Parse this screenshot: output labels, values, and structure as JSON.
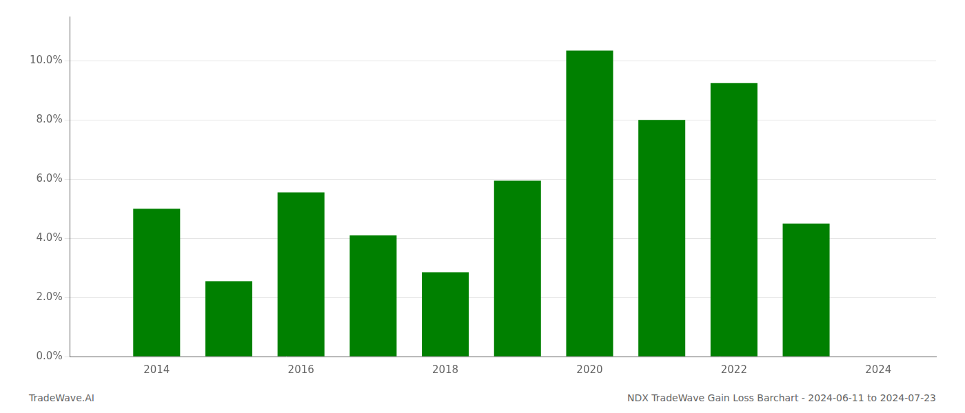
{
  "chart_data": {
    "type": "bar",
    "x": [
      2014,
      2015,
      2016,
      2017,
      2018,
      2019,
      2020,
      2021,
      2022,
      2023
    ],
    "values": [
      0.05,
      0.0255,
      0.0555,
      0.041,
      0.0285,
      0.0595,
      0.1035,
      0.08,
      0.0925,
      0.045
    ],
    "color": "#008000",
    "xlim": [
      2012.8,
      2024.8
    ],
    "xticks": [
      2014,
      2016,
      2018,
      2020,
      2022,
      2024
    ],
    "ylim": [
      0,
      0.115
    ],
    "yticks": [
      {
        "value": 0.0,
        "label": "0.0%"
      },
      {
        "value": 0.02,
        "label": "2.0%"
      },
      {
        "value": 0.04,
        "label": "4.0%"
      },
      {
        "value": 0.06,
        "label": "6.0%"
      },
      {
        "value": 0.08,
        "label": "8.0%"
      },
      {
        "value": 0.1,
        "label": "10.0%"
      }
    ],
    "grid": true,
    "annotations": [
      "TradeWave.AI",
      "NDX TradeWave Gain Loss Barchart - 2024-06-11 to 2024-07-23"
    ]
  }
}
